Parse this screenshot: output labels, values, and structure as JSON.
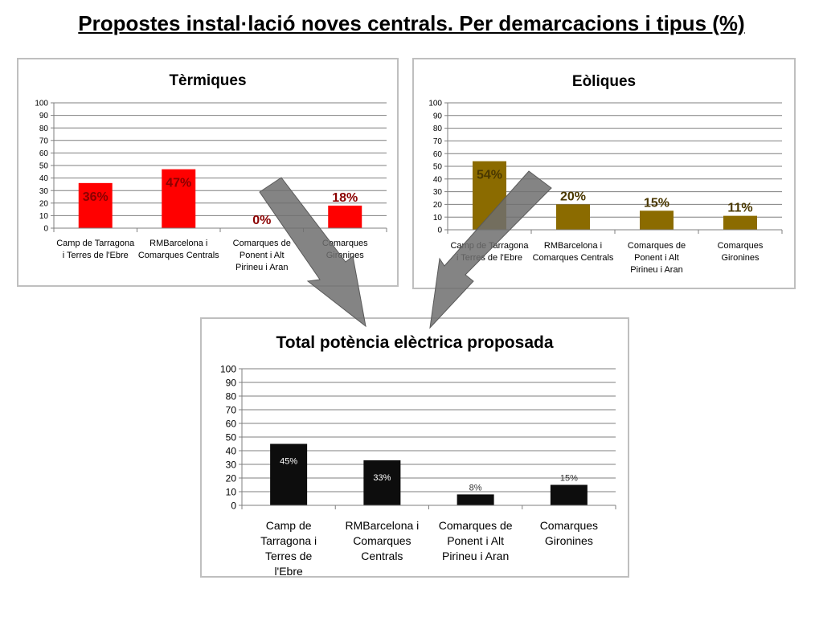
{
  "page_title": "Propostes instal·lació noves centrals. Per demarcacions i tipus (%)",
  "colors": {
    "termiques": "#ff0000",
    "eoliques": "#8b6b00",
    "total": "#0d0d0d",
    "arrow": "#6f6f6f"
  },
  "chart_data": [
    {
      "type": "bar",
      "title": "Tèrmiques",
      "categories": [
        "Camp de Tarragona i Terres de l'Ebre",
        "RMBarcelona i Comarques Centrals",
        "Comarques de Ponent i Alt Pirineu i Aran",
        "Comarques Gironines"
      ],
      "values": [
        36,
        47,
        0,
        18
      ],
      "data_labels": [
        "36%",
        "47%",
        "0%",
        "18%"
      ],
      "ylim": [
        0,
        100
      ],
      "yticks": [
        0,
        10,
        20,
        30,
        40,
        50,
        60,
        70,
        80,
        90,
        100
      ],
      "grid": true,
      "xlabel": "",
      "ylabel": ""
    },
    {
      "type": "bar",
      "title": "Eòliques",
      "categories": [
        "Camp de Tarragona i Terres de l'Ebre",
        "RMBarcelona i Comarques Centrals",
        "Comarques de Ponent i Alt Pirineu i Aran",
        "Comarques Gironines"
      ],
      "values": [
        54,
        20,
        15,
        11
      ],
      "data_labels": [
        "54%",
        "20%",
        "15%",
        "11%"
      ],
      "ylim": [
        0,
        100
      ],
      "yticks": [
        0,
        10,
        20,
        30,
        40,
        50,
        60,
        70,
        80,
        90,
        100
      ],
      "grid": true,
      "xlabel": "",
      "ylabel": ""
    },
    {
      "type": "bar",
      "title": "Total potència elèctrica proposada",
      "categories": [
        "Camp de Tarragona i Terres de l'Ebre",
        "RMBarcelona i Comarques Centrals",
        "Comarques de Ponent i Alt Pirineu i Aran",
        "Comarques Gironines"
      ],
      "values": [
        45,
        33,
        8,
        15
      ],
      "data_labels": [
        "45%",
        "33%",
        "8%",
        "15%"
      ],
      "ylim": [
        0,
        100
      ],
      "yticks": [
        0,
        10,
        20,
        30,
        40,
        50,
        60,
        70,
        80,
        90,
        100
      ],
      "grid": true,
      "xlabel": "",
      "ylabel": ""
    }
  ]
}
